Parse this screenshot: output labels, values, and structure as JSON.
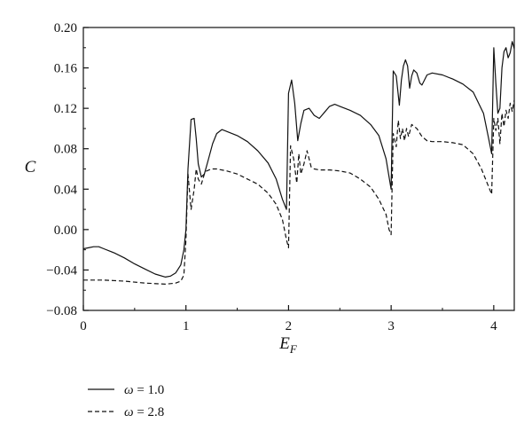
{
  "chart_data": {
    "type": "line",
    "xlabel": "E",
    "xlabel_sub": "F",
    "ylabel": "C",
    "xlim": [
      0,
      4.2
    ],
    "ylim": [
      -0.08,
      0.2
    ],
    "xticks": [
      "0",
      "1",
      "2",
      "3",
      "4"
    ],
    "yticks": [
      "-0.08",
      "-0.04",
      "0.00",
      "0.04",
      "0.08",
      "0.12",
      "0.16",
      "0.20"
    ],
    "grid": false,
    "legend_position": "below-left",
    "series": [
      {
        "name": "ω = 1.0",
        "name_symbol": "ω",
        "name_value": " = 1.0",
        "line_style": "solid",
        "color": "#111111",
        "x": [
          0.0,
          0.05,
          0.1,
          0.15,
          0.2,
          0.3,
          0.4,
          0.5,
          0.6,
          0.7,
          0.8,
          0.85,
          0.9,
          0.95,
          0.98,
          1.0,
          1.02,
          1.05,
          1.08,
          1.1,
          1.12,
          1.15,
          1.18,
          1.22,
          1.26,
          1.3,
          1.35,
          1.4,
          1.5,
          1.6,
          1.7,
          1.8,
          1.88,
          1.94,
          1.98,
          2.0,
          2.03,
          2.06,
          2.09,
          2.12,
          2.15,
          2.2,
          2.25,
          2.3,
          2.35,
          2.4,
          2.45,
          2.5,
          2.6,
          2.7,
          2.8,
          2.88,
          2.95,
          3.0,
          3.02,
          3.05,
          3.08,
          3.1,
          3.12,
          3.14,
          3.16,
          3.18,
          3.2,
          3.22,
          3.25,
          3.28,
          3.3,
          3.35,
          3.4,
          3.5,
          3.6,
          3.7,
          3.8,
          3.9,
          3.95,
          3.98,
          4.0,
          4.02,
          4.04,
          4.06,
          4.08,
          4.1,
          4.12,
          4.14,
          4.16,
          4.18,
          4.2
        ],
        "y": [
          -0.019,
          -0.018,
          -0.017,
          -0.017,
          -0.019,
          -0.023,
          -0.028,
          -0.034,
          -0.039,
          -0.044,
          -0.047,
          -0.046,
          -0.043,
          -0.035,
          -0.02,
          0.0,
          0.06,
          0.109,
          0.11,
          0.09,
          0.065,
          0.052,
          0.055,
          0.07,
          0.085,
          0.095,
          0.099,
          0.097,
          0.093,
          0.087,
          0.078,
          0.066,
          0.05,
          0.03,
          0.02,
          0.135,
          0.148,
          0.125,
          0.088,
          0.105,
          0.118,
          0.12,
          0.113,
          0.11,
          0.116,
          0.122,
          0.124,
          0.122,
          0.118,
          0.113,
          0.104,
          0.093,
          0.07,
          0.04,
          0.157,
          0.152,
          0.123,
          0.148,
          0.162,
          0.168,
          0.162,
          0.14,
          0.152,
          0.158,
          0.155,
          0.145,
          0.143,
          0.153,
          0.155,
          0.153,
          0.149,
          0.144,
          0.136,
          0.115,
          0.09,
          0.075,
          0.18,
          0.145,
          0.115,
          0.12,
          0.16,
          0.176,
          0.18,
          0.17,
          0.175,
          0.186,
          0.179
        ]
      },
      {
        "name": "ω = 2.8",
        "name_symbol": "ω",
        "name_value": " = 2.8",
        "line_style": "dashed",
        "color": "#111111",
        "x": [
          0.0,
          0.2,
          0.4,
          0.6,
          0.8,
          0.9,
          0.95,
          0.98,
          1.0,
          1.02,
          1.05,
          1.08,
          1.1,
          1.12,
          1.15,
          1.18,
          1.2,
          1.25,
          1.3,
          1.4,
          1.5,
          1.6,
          1.7,
          1.8,
          1.88,
          1.94,
          1.98,
          2.0,
          2.02,
          2.05,
          2.08,
          2.1,
          2.12,
          2.15,
          2.18,
          2.2,
          2.22,
          2.25,
          2.3,
          2.4,
          2.5,
          2.6,
          2.7,
          2.8,
          2.88,
          2.95,
          2.98,
          3.0,
          3.02,
          3.05,
          3.07,
          3.09,
          3.11,
          3.13,
          3.15,
          3.17,
          3.2,
          3.25,
          3.3,
          3.35,
          3.4,
          3.5,
          3.6,
          3.7,
          3.8,
          3.88,
          3.94,
          3.98,
          4.0,
          4.02,
          4.04,
          4.06,
          4.08,
          4.1,
          4.12,
          4.14,
          4.16,
          4.18,
          4.2
        ],
        "y": [
          -0.05,
          -0.05,
          -0.051,
          -0.053,
          -0.054,
          -0.053,
          -0.051,
          -0.045,
          -0.01,
          0.055,
          0.02,
          0.04,
          0.06,
          0.05,
          0.045,
          0.055,
          0.058,
          0.06,
          0.06,
          0.058,
          0.055,
          0.05,
          0.045,
          0.036,
          0.025,
          0.01,
          -0.01,
          -0.018,
          0.083,
          0.07,
          0.046,
          0.075,
          0.055,
          0.065,
          0.078,
          0.07,
          0.062,
          0.06,
          0.059,
          0.059,
          0.058,
          0.056,
          0.05,
          0.042,
          0.03,
          0.015,
          0.0,
          -0.005,
          0.095,
          0.082,
          0.108,
          0.09,
          0.1,
          0.088,
          0.1,
          0.092,
          0.104,
          0.1,
          0.092,
          0.088,
          0.087,
          0.087,
          0.086,
          0.084,
          0.075,
          0.06,
          0.045,
          0.035,
          0.11,
          0.098,
          0.11,
          0.085,
          0.115,
          0.102,
          0.118,
          0.11,
          0.125,
          0.117,
          0.128
        ]
      }
    ]
  }
}
